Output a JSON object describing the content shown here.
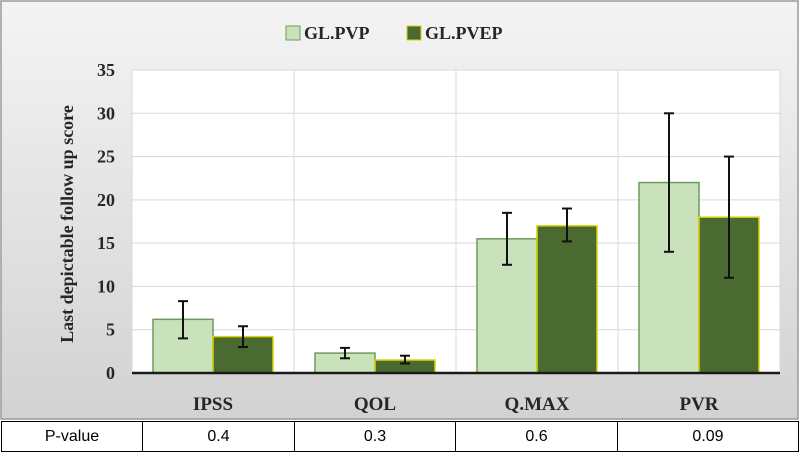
{
  "chart_data": {
    "type": "bar",
    "ylabel": "Last depictable follow up score",
    "ylim": [
      0,
      35
    ],
    "yticks": [
      0,
      5,
      10,
      15,
      20,
      25,
      30,
      35
    ],
    "grid": true,
    "legend_position": "top-center",
    "categories": [
      "IPSS",
      "QOL",
      "Q.MAX",
      "PVR"
    ],
    "series": [
      {
        "name": "GL.PVP",
        "color": "#c9e2bb",
        "edge": "#6e9a5c",
        "values": [
          6.2,
          2.3,
          15.5,
          22
        ],
        "err_low": [
          4.0,
          1.7,
          12.5,
          14.0
        ],
        "err_high": [
          8.3,
          2.9,
          18.5,
          30.0
        ]
      },
      {
        "name": "GL.PVEP",
        "color": "#4a6a31",
        "edge": "#d9d400",
        "values": [
          4.2,
          1.5,
          17.0,
          18
        ],
        "err_low": [
          3.0,
          1.1,
          15.2,
          11.0
        ],
        "err_high": [
          5.4,
          2.0,
          19.0,
          25.0
        ]
      }
    ]
  },
  "table": {
    "label": "P-value",
    "values": [
      "0.4",
      "0.3",
      "0.6",
      "0.09"
    ]
  }
}
